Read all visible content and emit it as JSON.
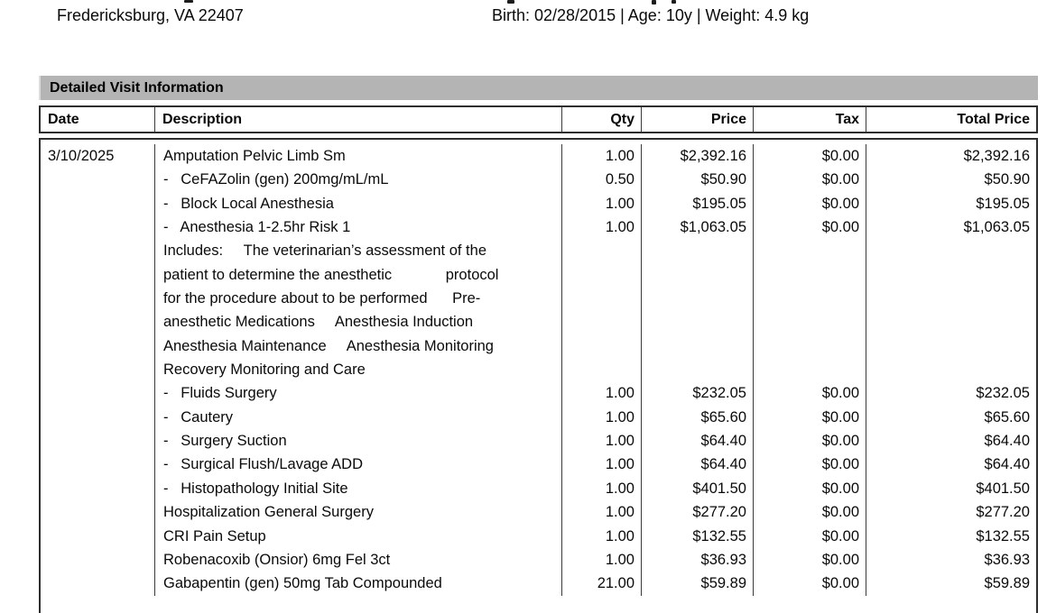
{
  "header": {
    "address_line": "Fredericksburg, VA 22407",
    "patient_info": "Birth: 02/28/2015 | Age: 10y | Weight: 4.9 kg"
  },
  "section": {
    "title": "Detailed Visit Information",
    "title_bar_color": "#b4b4b4",
    "border_color": "#2e2e2e"
  },
  "table": {
    "headers": [
      "Date",
      "Description",
      "Qty",
      "Price",
      "Tax",
      "Total Price"
    ],
    "rows": [
      {
        "date": "3/10/2025",
        "desc": "Amputation Pelvic Limb Sm",
        "qty": "1.00",
        "price": "$2,392.16",
        "tax": "$0.00",
        "total": "$2,392.16"
      },
      {
        "desc": "-   CeFAZolin (gen) 200mg/mL/mL",
        "qty": "0.50",
        "price": "$50.90",
        "tax": "$0.00",
        "total": "$50.90"
      },
      {
        "desc": "-   Block Local Anesthesia",
        "qty": "1.00",
        "price": "$195.05",
        "tax": "$0.00",
        "total": "$195.05"
      },
      {
        "desc": "-   Anesthesia 1-2.5hr Risk 1",
        "qty": "1.00",
        "price": "$1,063.05",
        "tax": "$0.00",
        "total": "$1,063.05"
      },
      {
        "desc": "Includes:     The veterinarian’s assessment of the"
      },
      {
        "desc": "patient to determine the anesthetic             protocol"
      },
      {
        "desc": "for the procedure about to be performed      Pre-"
      },
      {
        "desc": "anesthetic Medications     Anesthesia Induction"
      },
      {
        "desc": "Anesthesia Maintenance     Anesthesia Monitoring"
      },
      {
        "desc": "Recovery Monitoring and Care"
      },
      {
        "desc": "-   Fluids Surgery",
        "qty": "1.00",
        "price": "$232.05",
        "tax": "$0.00",
        "total": "$232.05"
      },
      {
        "desc": "-   Cautery",
        "qty": "1.00",
        "price": "$65.60",
        "tax": "$0.00",
        "total": "$65.60"
      },
      {
        "desc": "-   Surgery Suction",
        "qty": "1.00",
        "price": "$64.40",
        "tax": "$0.00",
        "total": "$64.40"
      },
      {
        "desc": "-   Surgical Flush/Lavage ADD",
        "qty": "1.00",
        "price": "$64.40",
        "tax": "$0.00",
        "total": "$64.40"
      },
      {
        "desc": "-   Histopathology Initial Site",
        "qty": "1.00",
        "price": "$401.50",
        "tax": "$0.00",
        "total": "$401.50"
      },
      {
        "desc": "Hospitalization General Surgery",
        "qty": "1.00",
        "price": "$277.20",
        "tax": "$0.00",
        "total": "$277.20"
      },
      {
        "desc": "CRI Pain Setup",
        "qty": "1.00",
        "price": "$132.55",
        "tax": "$0.00",
        "total": "$132.55"
      },
      {
        "desc": "Robenacoxib (Onsior) 6mg Fel 3ct",
        "qty": "1.00",
        "price": "$36.93",
        "tax": "$0.00",
        "total": "$36.93"
      },
      {
        "desc": "Gabapentin (gen) 50mg Tab Compounded",
        "qty": "21.00",
        "price": "$59.89",
        "tax": "$0.00",
        "total": "$59.89"
      }
    ]
  }
}
